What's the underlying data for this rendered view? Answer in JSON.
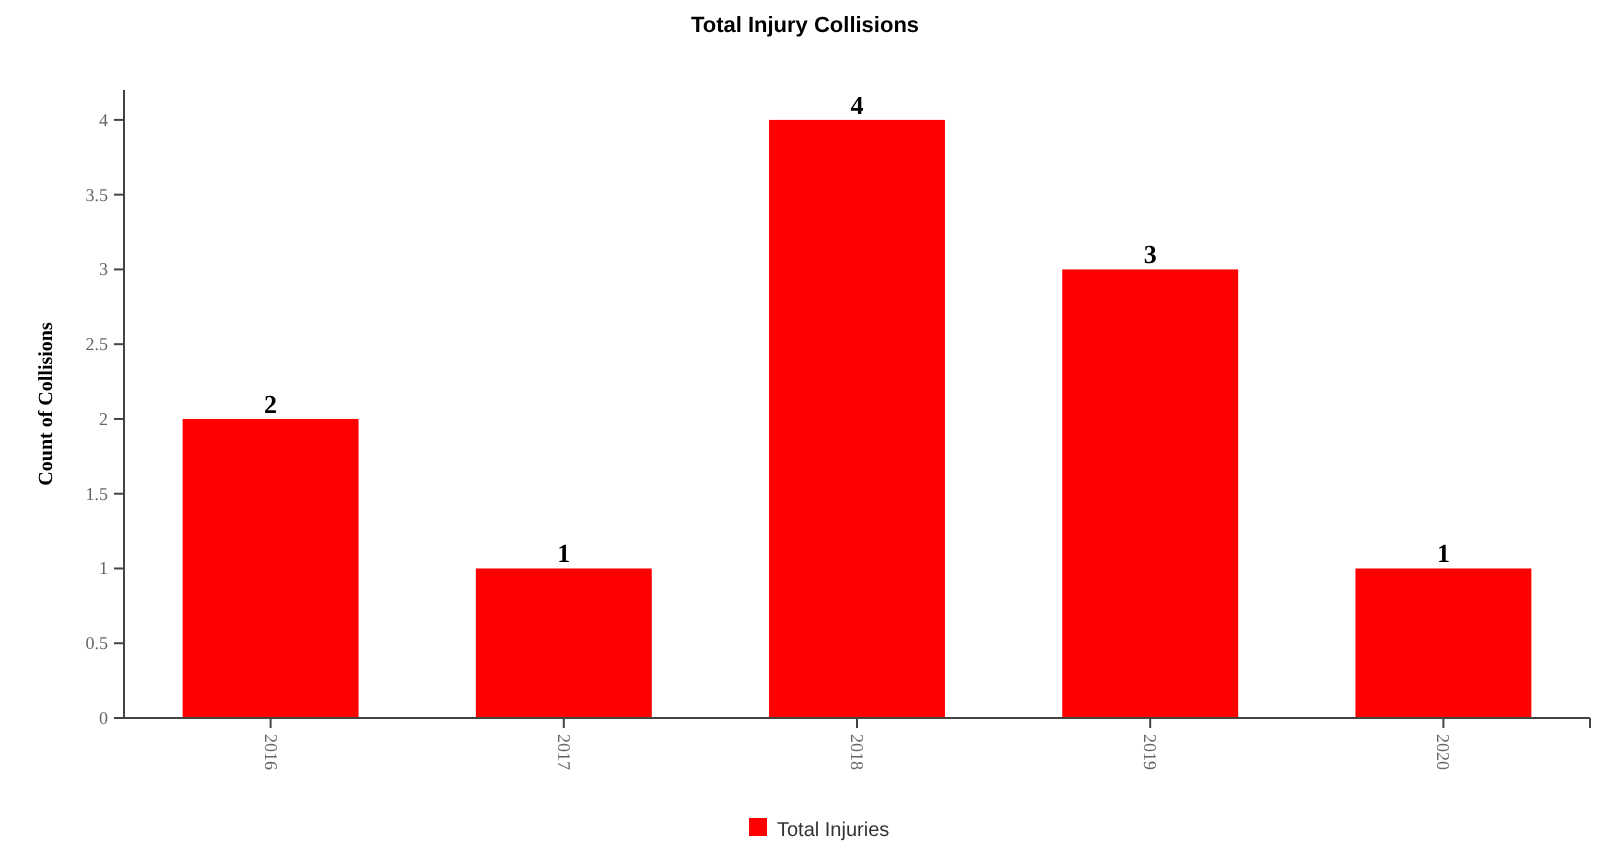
{
  "chart_data": {
    "type": "bar",
    "title": "Total Injury Collisions",
    "ylabel": "Count of Collisions",
    "categories": [
      "2016",
      "2017",
      "2018",
      "2019",
      "2020"
    ],
    "series": [
      {
        "name": "Total Injuries",
        "color": "#ff0000",
        "values": [
          2,
          1,
          4,
          3,
          1
        ]
      }
    ],
    "ylim": [
      0,
      4.2
    ],
    "yticks": [
      0,
      0.5,
      1,
      1.5,
      2,
      2.5,
      3,
      3.5,
      4
    ],
    "data_labels": true,
    "legend": "bottom",
    "grid": false
  }
}
